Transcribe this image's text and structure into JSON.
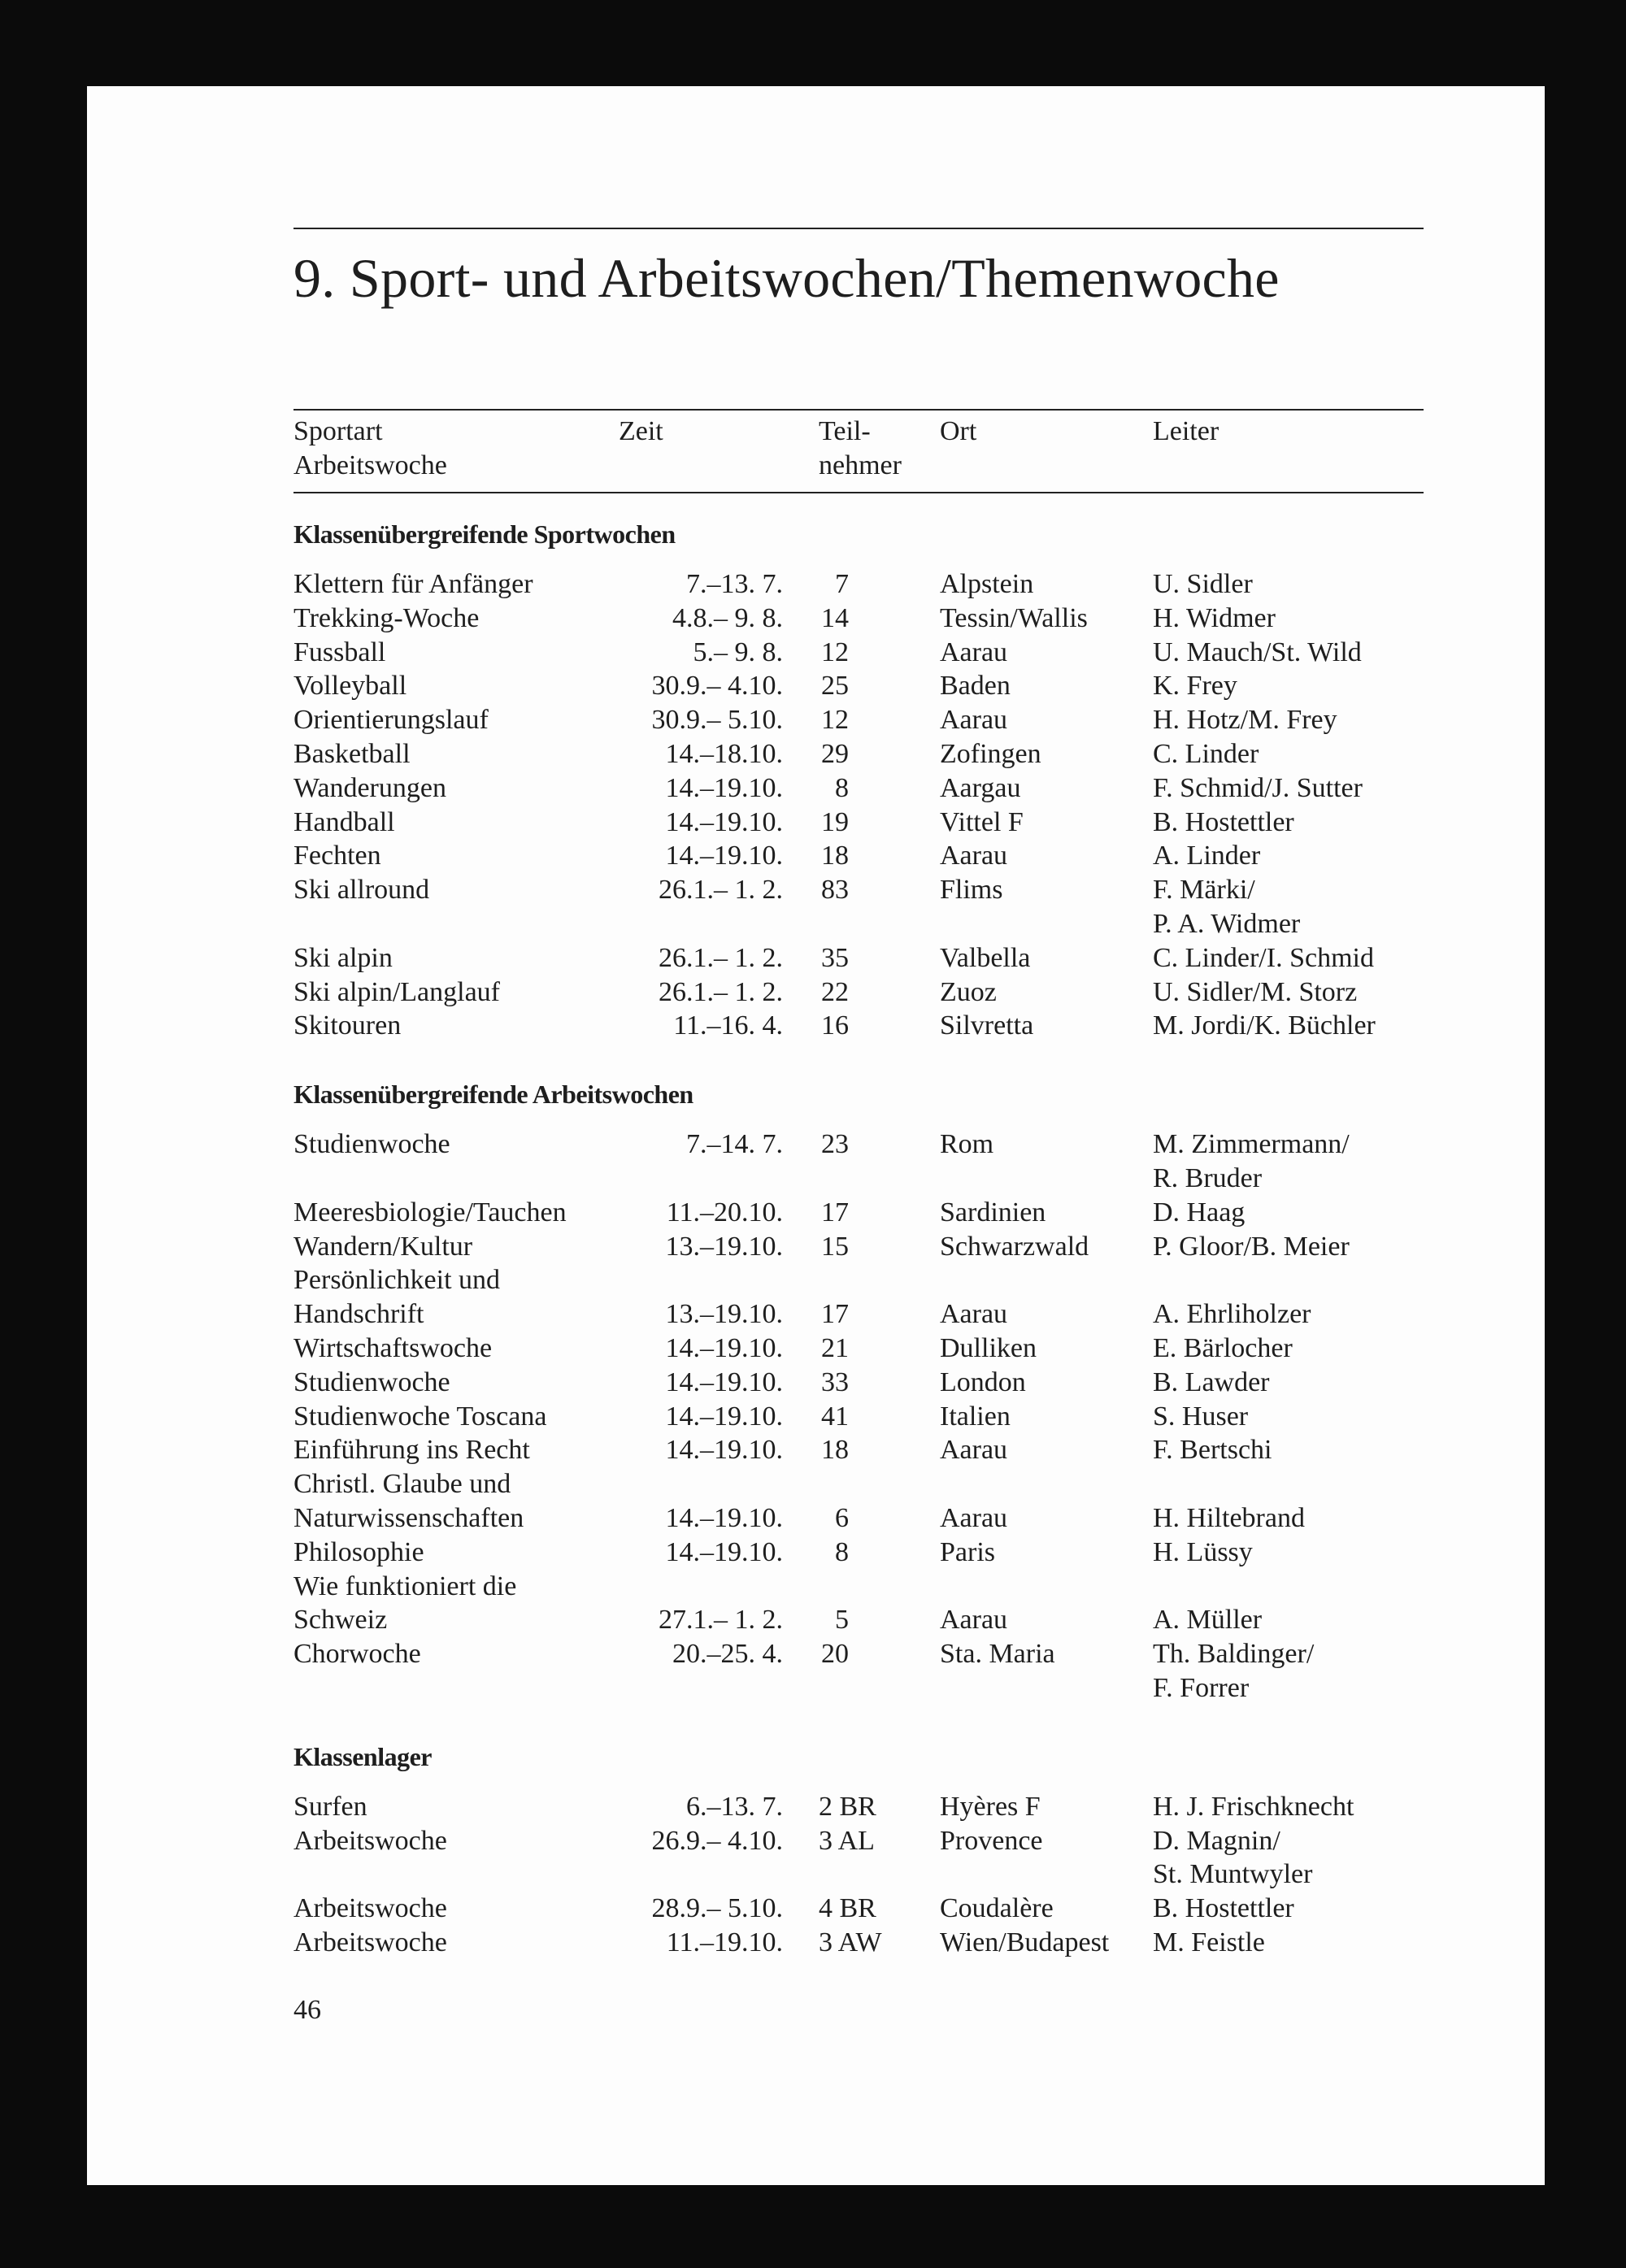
{
  "title": "9. Sport- und Arbeitswochen/Themenwoche",
  "header": {
    "sportart": [
      "Sportart",
      "Arbeitswoche"
    ],
    "zeit": "Zeit",
    "teilnehmer": [
      "Teil-",
      "nehmer"
    ],
    "ort": "Ort",
    "leiter": "Leiter"
  },
  "sections": [
    {
      "title": "Klassenübergreifende Sportwochen",
      "rows": [
        {
          "sportart": [
            "Klettern für Anfänger"
          ],
          "zeit": "7.–13.  7.",
          "teil": "7",
          "ort": "Alpstein",
          "leiter": [
            "U. Sidler"
          ]
        },
        {
          "sportart": [
            "Trekking-Woche"
          ],
          "zeit": "4.8.–  9.  8.",
          "teil": "14",
          "ort": "Tessin/Wallis",
          "leiter": [
            "H. Widmer"
          ]
        },
        {
          "sportart": [
            "Fussball"
          ],
          "zeit": "5.–  9.  8.",
          "teil": "12",
          "ort": "Aarau",
          "leiter": [
            "U. Mauch/St. Wild"
          ]
        },
        {
          "sportart": [
            "Volleyball"
          ],
          "zeit": "30.9.–  4.10.",
          "teil": "25",
          "ort": "Baden",
          "leiter": [
            "K. Frey"
          ]
        },
        {
          "sportart": [
            "Orientierungslauf"
          ],
          "zeit": "30.9.–  5.10.",
          "teil": "12",
          "ort": "Aarau",
          "leiter": [
            "H. Hotz/M. Frey"
          ]
        },
        {
          "sportart": [
            "Basketball"
          ],
          "zeit": "14.–18.10.",
          "teil": "29",
          "ort": "Zofingen",
          "leiter": [
            "C. Linder"
          ]
        },
        {
          "sportart": [
            "Wanderungen"
          ],
          "zeit": "14.–19.10.",
          "teil": "8",
          "ort": "Aargau",
          "leiter": [
            "F. Schmid/J. Sutter"
          ]
        },
        {
          "sportart": [
            "Handball"
          ],
          "zeit": "14.–19.10.",
          "teil": "19",
          "ort": "Vittel F",
          "leiter": [
            "B. Hostettler"
          ]
        },
        {
          "sportart": [
            "Fechten"
          ],
          "zeit": "14.–19.10.",
          "teil": "18",
          "ort": "Aarau",
          "leiter": [
            "A. Linder"
          ]
        },
        {
          "sportart": [
            "Ski allround"
          ],
          "zeit": "26.1.–  1.  2.",
          "teil": "83",
          "ort": "Flims",
          "leiter": [
            "F. Märki/",
            "P. A. Widmer"
          ]
        },
        {
          "sportart": [
            "Ski alpin"
          ],
          "zeit": "26.1.–  1.  2.",
          "teil": "35",
          "ort": "Valbella",
          "leiter": [
            "C. Linder/I. Schmid"
          ]
        },
        {
          "sportart": [
            "Ski alpin/Langlauf"
          ],
          "zeit": "26.1.–  1.  2.",
          "teil": "22",
          "ort": "Zuoz",
          "leiter": [
            "U. Sidler/M. Storz"
          ]
        },
        {
          "sportart": [
            "Skitouren"
          ],
          "zeit": "11.–16.  4.",
          "teil": "16",
          "ort": "Silvretta",
          "leiter": [
            "M. Jordi/K. Büchler"
          ]
        }
      ]
    },
    {
      "title": "Klassenübergreifende Arbeitswochen",
      "rows": [
        {
          "sportart": [
            "Studienwoche"
          ],
          "zeit": "7.–14.  7.",
          "teil": "23",
          "ort": "Rom",
          "leiter": [
            "M. Zimmermann/",
            "R. Bruder"
          ]
        },
        {
          "sportart": [
            "Meeresbiologie/Tauchen"
          ],
          "zeit": "11.–20.10.",
          "teil": "17",
          "ort": "Sardinien",
          "leiter": [
            "D. Haag"
          ]
        },
        {
          "sportart": [
            "Wandern/Kultur"
          ],
          "zeit": "13.–19.10.",
          "teil": "15",
          "ort": "Schwarzwald",
          "leiter": [
            "P. Gloor/B. Meier"
          ]
        },
        {
          "sportart": [
            "Persönlichkeit und",
            "Handschrift"
          ],
          "zeit": "13.–19.10.",
          "teil": "17",
          "ort": "Aarau",
          "leiter": [
            "A. Ehrliholzer"
          ]
        },
        {
          "sportart": [
            "Wirtschaftswoche"
          ],
          "zeit": "14.–19.10.",
          "teil": "21",
          "ort": "Dulliken",
          "leiter": [
            "E. Bärlocher"
          ]
        },
        {
          "sportart": [
            "Studienwoche"
          ],
          "zeit": "14.–19.10.",
          "teil": "33",
          "ort": "London",
          "leiter": [
            "B. Lawder"
          ]
        },
        {
          "sportart": [
            "Studienwoche Toscana"
          ],
          "zeit": "14.–19.10.",
          "teil": "41",
          "ort": "Italien",
          "leiter": [
            "S. Huser"
          ]
        },
        {
          "sportart": [
            "Einführung ins Recht"
          ],
          "zeit": "14.–19.10.",
          "teil": "18",
          "ort": "Aarau",
          "leiter": [
            "F. Bertschi"
          ]
        },
        {
          "sportart": [
            "Christl. Glaube und",
            "Naturwissenschaften"
          ],
          "zeit": "14.–19.10.",
          "teil": "6",
          "ort": "Aarau",
          "leiter": [
            "H. Hiltebrand"
          ]
        },
        {
          "sportart": [
            "Philosophie"
          ],
          "zeit": "14.–19.10.",
          "teil": "8",
          "ort": "Paris",
          "leiter": [
            "H. Lüssy"
          ]
        },
        {
          "sportart": [
            "Wie funktioniert die",
            "Schweiz"
          ],
          "zeit": "27.1.–  1.  2.",
          "teil": "5",
          "ort": "Aarau",
          "leiter": [
            "A. Müller"
          ]
        },
        {
          "sportart": [
            "Chorwoche"
          ],
          "zeit": "20.–25.  4.",
          "teil": "20",
          "ort": "Sta. Maria",
          "leiter": [
            "Th. Baldinger/",
            "F. Forrer"
          ]
        }
      ]
    },
    {
      "title": "Klassenlager",
      "rows": [
        {
          "sportart": [
            "Surfen"
          ],
          "zeit": "6.–13.  7.",
          "teil": "2 BR",
          "ort": "Hyères F",
          "leiter": [
            "H. J. Frischknecht"
          ]
        },
        {
          "sportart": [
            "Arbeitswoche"
          ],
          "zeit": "26.9.–  4.10.",
          "teil": "3 AL",
          "ort": "Provence",
          "leiter": [
            "D. Magnin/",
            "St. Muntwyler"
          ]
        },
        {
          "sportart": [
            "Arbeitswoche"
          ],
          "zeit": "28.9.–  5.10.",
          "teil": "4 BR",
          "ort": "Coudalère",
          "leiter": [
            "B. Hostettler"
          ]
        },
        {
          "sportart": [
            "Arbeitswoche"
          ],
          "zeit": "11.–19.10.",
          "teil": "3 AW",
          "ort": "Wien/Budapest",
          "leiter": [
            "M. Feistle"
          ]
        }
      ]
    }
  ],
  "page_number": "46"
}
